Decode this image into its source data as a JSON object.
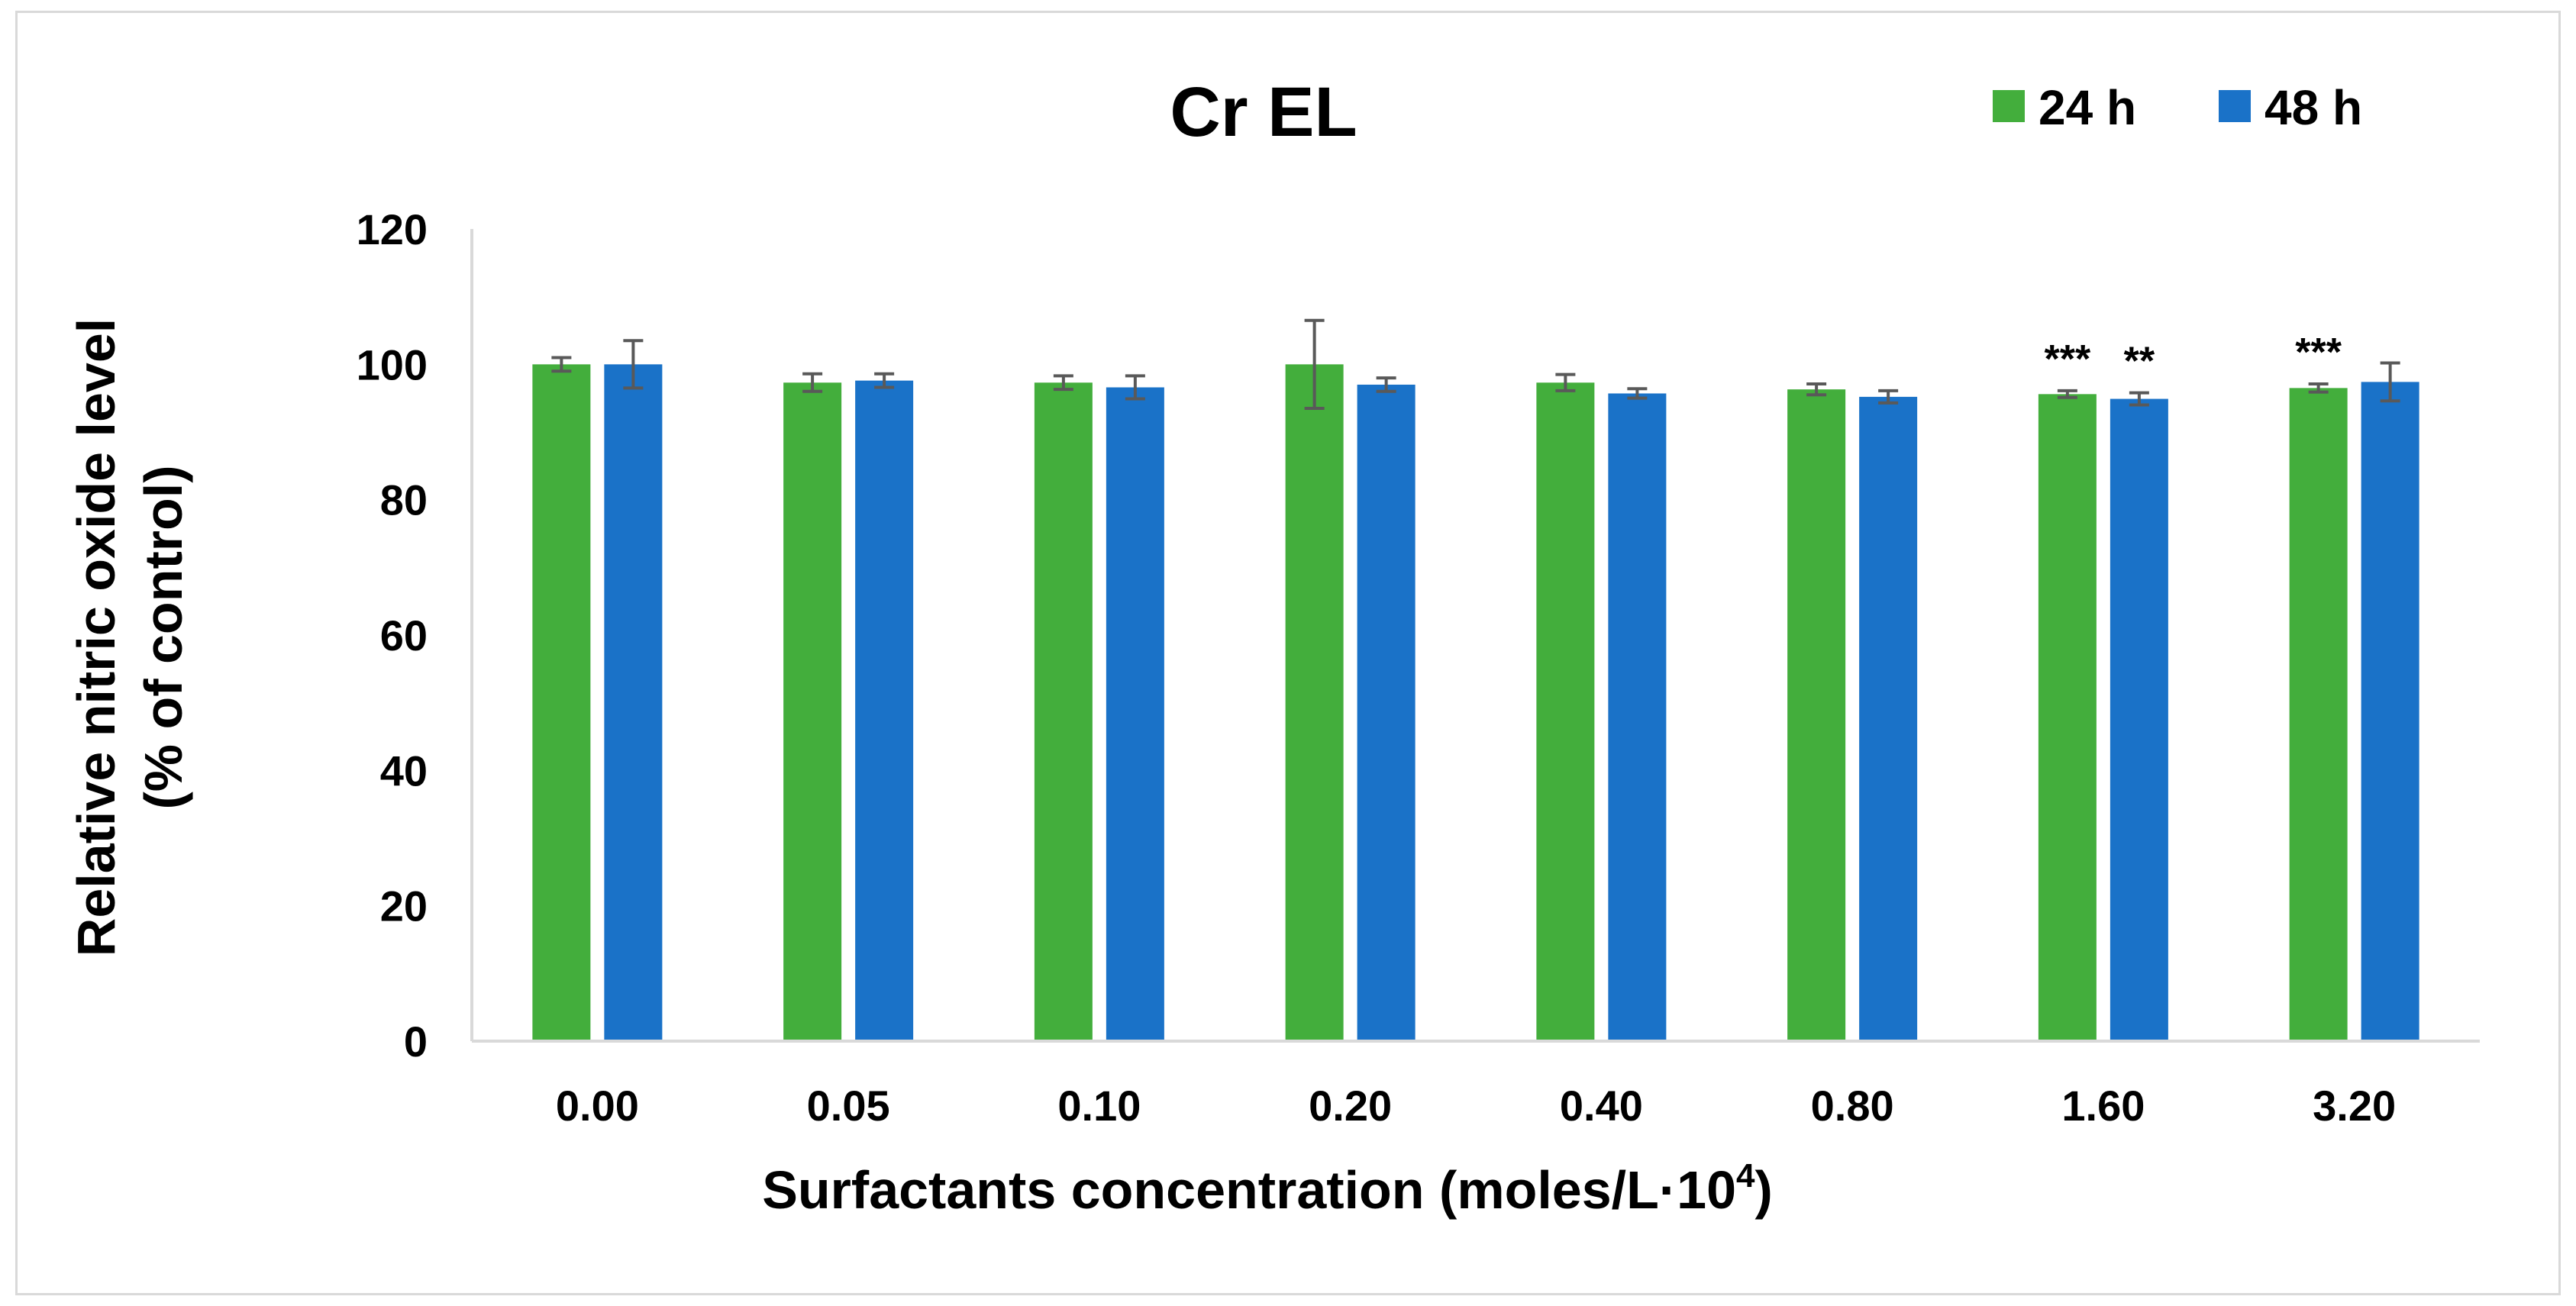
{
  "chart_data": {
    "type": "bar",
    "title": "Cr EL",
    "xlabel": "Surfactants concentration (moles/L·10",
    "xlabel_sup": "4",
    "xlabel_end": ")",
    "ylabel_line1": "Relative nitric oxide level",
    "ylabel_line2": "(% of control)",
    "ylim": [
      0,
      120
    ],
    "yticks": [
      0,
      20,
      40,
      60,
      80,
      100,
      120
    ],
    "legend_position": "top-right",
    "categories": [
      "0.00",
      "0.05",
      "0.10",
      "0.20",
      "0.40",
      "0.80",
      "1.60",
      "3.20"
    ],
    "series": [
      {
        "name": "24 h",
        "color": "#43ae3c",
        "values": [
          100,
          97.3,
          97.3,
          100,
          97.3,
          96.3,
          95.6,
          96.5
        ],
        "errors": [
          1.0,
          1.3,
          1.0,
          6.5,
          1.2,
          0.8,
          0.5,
          0.6
        ],
        "annotations": [
          "",
          "",
          "",
          "",
          "",
          "",
          "***",
          "***"
        ]
      },
      {
        "name": "48 h",
        "color": "#1a72c8",
        "values": [
          100,
          97.6,
          96.6,
          97.0,
          95.7,
          95.2,
          94.9,
          97.4
        ],
        "errors": [
          3.5,
          1.0,
          1.7,
          1.0,
          0.7,
          0.9,
          0.9,
          2.8
        ],
        "annotations": [
          "",
          "",
          "",
          "",
          "",
          "",
          "**",
          ""
        ]
      }
    ],
    "error_bar_color": "#595959",
    "axis_color": "#d9d9d9"
  }
}
